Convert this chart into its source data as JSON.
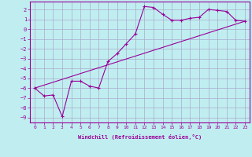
{
  "title": "",
  "xlabel": "Windchill (Refroidissement éolien,°C)",
  "bg_color": "#c0eef0",
  "grid_color": "#aaaacc",
  "line_color": "#990099",
  "marker": "+",
  "x_hours": [
    0,
    1,
    2,
    3,
    4,
    5,
    6,
    7,
    8,
    9,
    10,
    11,
    12,
    13,
    14,
    15,
    16,
    17,
    18,
    19,
    20,
    21,
    22,
    23
  ],
  "y_values": [
    -6.0,
    -6.8,
    -6.7,
    -8.9,
    -5.3,
    -5.3,
    -5.8,
    -6.0,
    -3.3,
    -2.5,
    -1.5,
    -0.5,
    2.3,
    2.2,
    1.5,
    0.9,
    0.9,
    1.1,
    1.2,
    2.0,
    1.9,
    1.8,
    0.9,
    0.8
  ],
  "line2_x": [
    0,
    23
  ],
  "line2_y": [
    -6.0,
    0.8
  ],
  "ylim": [
    -9.5,
    2.8
  ],
  "xlim": [
    -0.5,
    23.5
  ],
  "yticks": [
    2,
    1,
    0,
    -1,
    -2,
    -3,
    -4,
    -5,
    -6,
    -7,
    -8,
    -9
  ],
  "xticks": [
    0,
    1,
    2,
    3,
    4,
    5,
    6,
    7,
    8,
    9,
    10,
    11,
    12,
    13,
    14,
    15,
    16,
    17,
    18,
    19,
    20,
    21,
    22,
    23
  ]
}
